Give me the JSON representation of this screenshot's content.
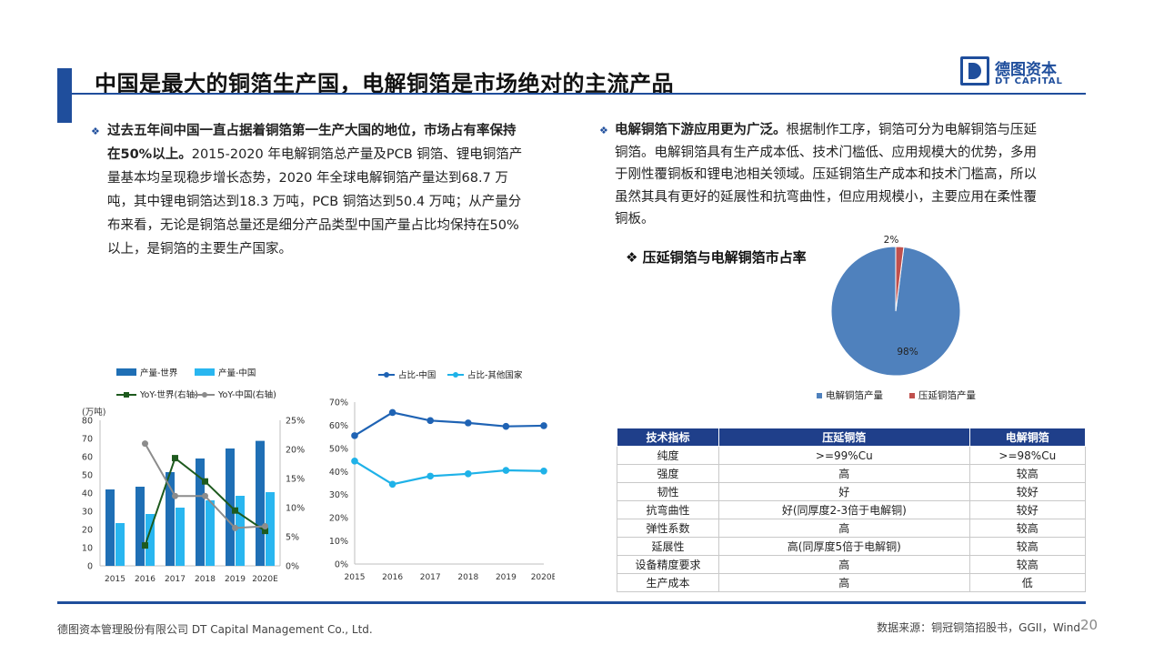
{
  "header": {
    "title": "中国是最大的铜箔生产国，电解铜箔是市场绝对的主流产品",
    "logo_cn": "德图资本",
    "logo_en": "DT CAPITAL"
  },
  "left_text": {
    "bullet": "❖",
    "lead": "过去五年间中国一直占据着铜箔第一生产大国的地位，市场占有率保持在50%以上。",
    "body": "2015-2020 年电解铜箔总产量及PCB 铜箔、锂电铜箔产量基本均呈现稳步增长态势，2020 年全球电解铜箔产量达到68.7 万吨，其中锂电铜箔达到18.3 万吨，PCB 铜箔达到50.4 万吨；从产量分布来看，无论是铜箔总量还是细分产品类型中国产量占比均保持在50%以上，是铜箔的主要生产国家。"
  },
  "right_text": {
    "bullet": "❖",
    "lead": "电解铜箔下游应用更为广泛。",
    "body": "根据制作工序，铜箔可分为电解铜箔与压延铜箔。电解铜箔具有生产成本低、技术门槛低、应用规模大的优势，多用于刚性覆铜板和锂电池相关领域。压延铜箔生产成本和技术门槛高，所以虽然其具有更好的延展性和抗弯曲性，但应用规模小，主要应用在柔性覆铜板。"
  },
  "pie_title": "❖ 压延铜箔与电解铜箔市占率",
  "colors": {
    "brand": "#1f4e9c",
    "bar_world": "#1f6fb5",
    "bar_china": "#29b6f0",
    "line_world": "#1e5a1e",
    "line_china": "#8c8c8c",
    "share_china": "#1f63b4",
    "share_other": "#1fb2e8",
    "pie_elec": "#4f81bd",
    "pie_roll": "#c0504d"
  },
  "chart_data": [
    {
      "type": "bar",
      "categories": [
        "2015",
        "2016",
        "2017",
        "2018",
        "2019",
        "2020E"
      ],
      "y_unit": "(万吨)",
      "ylim": [
        0,
        80
      ],
      "y_ticks": [
        "0",
        "10",
        "20",
        "30",
        "40",
        "50",
        "60",
        "70",
        "80"
      ],
      "y2lim": [
        0,
        25
      ],
      "y2_ticks": [
        "0%",
        "5%",
        "10%",
        "15%",
        "20%",
        "25%"
      ],
      "series": [
        {
          "name": "产量-世界",
          "kind": "bar",
          "axis": "left",
          "values": [
            42,
            43.5,
            51.5,
            59,
            64.5,
            68.7
          ]
        },
        {
          "name": "产量-中国",
          "kind": "bar",
          "axis": "left",
          "values": [
            23.5,
            28.5,
            32,
            36,
            38.5,
            40.5
          ]
        },
        {
          "name": "YoY-世界(右轴)",
          "kind": "line",
          "axis": "right",
          "values": [
            null,
            3.5,
            18.5,
            14.5,
            9.5,
            6
          ]
        },
        {
          "name": "YoY-中国(右轴)",
          "kind": "line",
          "axis": "right",
          "values": [
            null,
            21,
            12,
            12,
            6.5,
            6.8
          ]
        }
      ],
      "grid": false,
      "legend": "top"
    },
    {
      "type": "line",
      "categories": [
        "2015",
        "2016",
        "2017",
        "2018",
        "2019",
        "2020E"
      ],
      "ylim": [
        0,
        70
      ],
      "y_ticks": [
        "0%",
        "10%",
        "20%",
        "30%",
        "40%",
        "50%",
        "60%",
        "70%"
      ],
      "series": [
        {
          "name": "占比-中国",
          "values": [
            55.5,
            65.5,
            62,
            61,
            59.5,
            59.8
          ]
        },
        {
          "name": "占比-其他国家",
          "values": [
            44.5,
            34.5,
            38,
            39,
            40.5,
            40.2
          ]
        }
      ],
      "grid": false,
      "legend": "top"
    },
    {
      "type": "pie",
      "slices": [
        {
          "name": "电解铜箔产量",
          "value": 98,
          "label": "98%"
        },
        {
          "name": "压延铜箔产量",
          "value": 2,
          "label": "2%"
        }
      ],
      "legend": "bottom"
    },
    {
      "type": "table",
      "columns": [
        "技术指标",
        "压延铜箔",
        "电解铜箔"
      ],
      "rows": [
        [
          "纯度",
          ">=99%Cu",
          ">=98%Cu"
        ],
        [
          "强度",
          "高",
          "较高"
        ],
        [
          "韧性",
          "好",
          "较好"
        ],
        [
          "抗弯曲性",
          "好(同厚度2-3倍于电解铜)",
          "较好"
        ],
        [
          "弹性系数",
          "高",
          "较高"
        ],
        [
          "延展性",
          "高(同厚度5倍于电解铜)",
          "较高"
        ],
        [
          "设备精度要求",
          "高",
          "较高"
        ],
        [
          "生产成本",
          "高",
          "低"
        ]
      ]
    }
  ],
  "footer": {
    "company": "德图资本管理股份有限公司 DT Capital Management Co., Ltd.",
    "source": "数据来源：铜冠铜箔招股书，GGII，Wind",
    "page": "20"
  }
}
